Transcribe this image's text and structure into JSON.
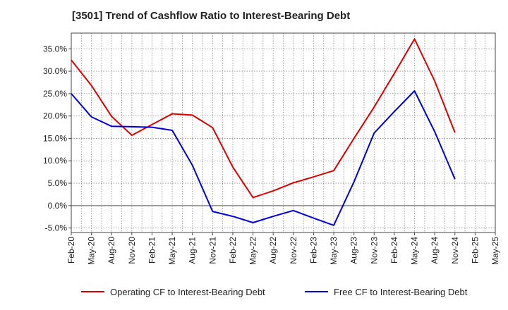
{
  "chart_data": {
    "type": "line",
    "title": "[3501]  Trend of Cashflow Ratio to Interest-Bearing Debt",
    "xlabel": "",
    "ylabel": "",
    "categories": [
      "Feb-20",
      "May-20",
      "Aug-20",
      "Nov-20",
      "Feb-21",
      "May-21",
      "Aug-21",
      "Nov-21",
      "Feb-22",
      "May-22",
      "Aug-22",
      "Nov-22",
      "Feb-23",
      "May-23",
      "Aug-23",
      "Nov-23",
      "Feb-24",
      "May-24",
      "Aug-24",
      "Nov-24",
      "Feb-25",
      "May-25"
    ],
    "ylim": [
      -6,
      38.5
    ],
    "yticks": [
      -5,
      0,
      5,
      10,
      15,
      20,
      25,
      30,
      35
    ],
    "ytick_labels": [
      "-5.0%",
      "0.0%",
      "5.0%",
      "10.0%",
      "15.0%",
      "20.0%",
      "25.0%",
      "30.0%",
      "35.0%"
    ],
    "grid": true,
    "legend_position": "bottom",
    "series": [
      {
        "name": "Operating CF to Interest-Bearing Debt",
        "color": "#dd0000",
        "values": [
          32.5,
          26.8,
          19.9,
          15.7,
          18.1,
          20.5,
          20.2,
          17.4,
          8.6,
          1.8,
          3.3,
          5.1,
          6.4,
          7.8,
          15.0,
          22.0,
          29.5,
          37.2,
          27.8,
          16.3,
          null,
          null
        ]
      },
      {
        "name": "Free CF to Interest-Bearing Debt",
        "color": "#0000dd",
        "values": [
          25.0,
          19.8,
          17.7,
          17.6,
          17.5,
          16.8,
          9.0,
          -1.3,
          -2.4,
          -3.8,
          -2.4,
          -1.1,
          -2.8,
          -4.4,
          5.3,
          16.2,
          21.0,
          25.6,
          16.5,
          5.9,
          null,
          null
        ]
      }
    ]
  }
}
